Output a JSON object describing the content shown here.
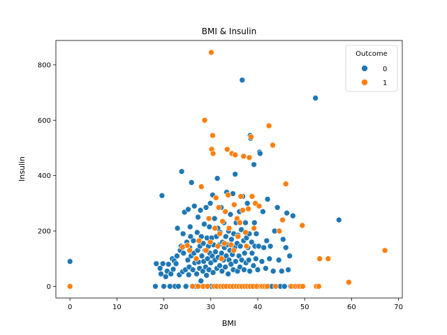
{
  "colors": {
    "outcome0": "#1f77b4",
    "outcome1": "#ff7f0e"
  },
  "chart_data": {
    "type": "scatter",
    "title": "BMI & Insulin",
    "xlabel": "BMI",
    "ylabel": "Insulin",
    "xlim": [
      -3,
      70.8
    ],
    "ylim": [
      -42,
      888
    ],
    "xticks": [
      0,
      10,
      20,
      30,
      40,
      50,
      60,
      70
    ],
    "yticks": [
      0,
      200,
      400,
      600,
      800
    ],
    "grid": false,
    "legend": {
      "title": "Outcome",
      "placement": "top-right",
      "entries": [
        "0",
        "1"
      ]
    },
    "series": [
      {
        "name": "0",
        "color": "#1f77b4",
        "points": [
          [
            0,
            90
          ],
          [
            18.2,
            0
          ],
          [
            18.4,
            82
          ],
          [
            19.2,
            65
          ],
          [
            19.4,
            45
          ],
          [
            19.6,
            328
          ],
          [
            19.8,
            82
          ],
          [
            20.0,
            0
          ],
          [
            20.4,
            35
          ],
          [
            20.7,
            55
          ],
          [
            21.0,
            80
          ],
          [
            21.3,
            0
          ],
          [
            21.5,
            45
          ],
          [
            21.8,
            100
          ],
          [
            22.0,
            62
          ],
          [
            22.2,
            92
          ],
          [
            22.4,
            0
          ],
          [
            22.6,
            82
          ],
          [
            22.8,
            110
          ],
          [
            22.9,
            210
          ],
          [
            23.1,
            0
          ],
          [
            23.3,
            42
          ],
          [
            23.5,
            130
          ],
          [
            23.7,
            145
          ],
          [
            23.8,
            415
          ],
          [
            24.0,
            53
          ],
          [
            24.1,
            190
          ],
          [
            24.2,
            120
          ],
          [
            24.4,
            268
          ],
          [
            24.6,
            60
          ],
          [
            24.7,
            0
          ],
          [
            24.9,
            160
          ],
          [
            25.1,
            95
          ],
          [
            25.2,
            278
          ],
          [
            25.3,
            42
          ],
          [
            25.4,
            70
          ],
          [
            25.5,
            140
          ],
          [
            25.6,
            215
          ],
          [
            25.7,
            180
          ],
          [
            25.8,
            110
          ],
          [
            25.9,
            375
          ],
          [
            26.0,
            0
          ],
          [
            26.2,
            60
          ],
          [
            26.3,
            165
          ],
          [
            26.4,
            120
          ],
          [
            26.5,
            290
          ],
          [
            26.6,
            85
          ],
          [
            26.8,
            0
          ],
          [
            27.0,
            45
          ],
          [
            27.1,
            195
          ],
          [
            27.2,
            130
          ],
          [
            27.3,
            250
          ],
          [
            27.4,
            88
          ],
          [
            27.5,
            0
          ],
          [
            27.6,
            65
          ],
          [
            27.7,
            145
          ],
          [
            27.8,
            275
          ],
          [
            27.9,
            20
          ],
          [
            28.0,
            180
          ],
          [
            28.1,
            110
          ],
          [
            28.2,
            0
          ],
          [
            28.3,
            55
          ],
          [
            28.4,
            155
          ],
          [
            28.5,
            90
          ],
          [
            28.6,
            225
          ],
          [
            28.7,
            0
          ],
          [
            28.8,
            130
          ],
          [
            28.9,
            70
          ],
          [
            29.0,
            285
          ],
          [
            29.1,
            40
          ],
          [
            29.2,
            175
          ],
          [
            29.3,
            100
          ],
          [
            29.4,
            0
          ],
          [
            29.5,
            145
          ],
          [
            29.6,
            60
          ],
          [
            29.7,
            215
          ],
          [
            29.8,
            120
          ],
          [
            29.9,
            300
          ],
          [
            30.0,
            85
          ],
          [
            30.1,
            0
          ],
          [
            30.2,
            175
          ],
          [
            30.3,
            110
          ],
          [
            30.4,
            330
          ],
          [
            30.5,
            50
          ],
          [
            30.6,
            150
          ],
          [
            30.7,
            0
          ],
          [
            30.8,
            245
          ],
          [
            30.9,
            95
          ],
          [
            31.0,
            125
          ],
          [
            31.1,
            0
          ],
          [
            31.2,
            180
          ],
          [
            31.3,
            65
          ],
          [
            31.4,
            390
          ],
          [
            31.5,
            210
          ],
          [
            31.6,
            105
          ],
          [
            31.7,
            0
          ],
          [
            31.8,
            150
          ],
          [
            31.9,
            75
          ],
          [
            32.0,
            195
          ],
          [
            32.1,
            0
          ],
          [
            32.2,
            285
          ],
          [
            32.3,
            120
          ],
          [
            32.4,
            55
          ],
          [
            32.5,
            160
          ],
          [
            32.6,
            0
          ],
          [
            32.7,
            95
          ],
          [
            32.8,
            230
          ],
          [
            32.9,
            140
          ],
          [
            33.0,
            0
          ],
          [
            33.1,
            70
          ],
          [
            33.2,
            180
          ],
          [
            33.3,
            110
          ],
          [
            33.4,
            340
          ],
          [
            33.5,
            0
          ],
          [
            33.6,
            150
          ],
          [
            33.7,
            45
          ],
          [
            33.8,
            200
          ],
          [
            33.9,
            95
          ],
          [
            34.0,
            0
          ],
          [
            34.1,
            130
          ],
          [
            34.2,
            260
          ],
          [
            34.3,
            80
          ],
          [
            34.4,
            170
          ],
          [
            34.5,
            0
          ],
          [
            34.6,
            115
          ],
          [
            34.7,
            335
          ],
          [
            34.8,
            60
          ],
          [
            34.9,
            190
          ],
          [
            35.0,
            0
          ],
          [
            35.1,
            140
          ],
          [
            35.2,
            405
          ],
          [
            35.3,
            90
          ],
          [
            35.4,
            230
          ],
          [
            35.5,
            0
          ],
          [
            35.6,
            155
          ],
          [
            35.7,
            55
          ],
          [
            35.8,
            185
          ],
          [
            35.9,
            0
          ],
          [
            36.0,
            110
          ],
          [
            36.1,
            270
          ],
          [
            36.2,
            70
          ],
          [
            36.3,
            145
          ],
          [
            36.4,
            0
          ],
          [
            36.5,
            205
          ],
          [
            36.6,
            95
          ],
          [
            36.7,
            745
          ],
          [
            36.8,
            325
          ],
          [
            36.9,
            0
          ],
          [
            37.0,
            165
          ],
          [
            37.1,
            60
          ],
          [
            37.2,
            120
          ],
          [
            37.3,
            0
          ],
          [
            37.4,
            230
          ],
          [
            37.5,
            85
          ],
          [
            37.6,
            175
          ],
          [
            37.7,
            0
          ],
          [
            37.8,
            300
          ],
          [
            37.9,
            140
          ],
          [
            38.0,
            0
          ],
          [
            38.1,
            95
          ],
          [
            38.2,
            190
          ],
          [
            38.3,
            55
          ],
          [
            38.4,
            545
          ],
          [
            38.5,
            535
          ],
          [
            38.6,
            0
          ],
          [
            38.7,
            160
          ],
          [
            38.8,
            120
          ],
          [
            38.9,
            325
          ],
          [
            39.0,
            0
          ],
          [
            39.1,
            75
          ],
          [
            39.2,
            440
          ],
          [
            39.3,
            230
          ],
          [
            39.4,
            145
          ],
          [
            39.5,
            0
          ],
          [
            39.6,
            100
          ],
          [
            39.7,
            190
          ],
          [
            39.8,
            0
          ],
          [
            40.0,
            60
          ],
          [
            40.2,
            145
          ],
          [
            40.4,
            485
          ],
          [
            40.5,
            480
          ],
          [
            40.7,
            0
          ],
          [
            40.9,
            90
          ],
          [
            41.1,
            270
          ],
          [
            41.3,
            140
          ],
          [
            41.5,
            0
          ],
          [
            41.7,
            65
          ],
          [
            41.9,
            165
          ],
          [
            42.1,
            315
          ],
          [
            42.3,
            0
          ],
          [
            42.5,
            100
          ],
          [
            42.7,
            145
          ],
          [
            43.0,
            0
          ],
          [
            43.3,
            55
          ],
          [
            43.6,
            200
          ],
          [
            43.9,
            0
          ],
          [
            44.2,
            285
          ],
          [
            44.5,
            95
          ],
          [
            44.8,
            0
          ],
          [
            45.1,
            55
          ],
          [
            45.4,
            170
          ],
          [
            45.7,
            0
          ],
          [
            46.0,
            140
          ],
          [
            46.2,
            265
          ],
          [
            46.5,
            60
          ],
          [
            46.8,
            110
          ],
          [
            47.0,
            0
          ],
          [
            47.5,
            255
          ],
          [
            52.3,
            680
          ],
          [
            57.3,
            240
          ]
        ]
      },
      {
        "name": "1",
        "color": "#ff7f0e",
        "points": [
          [
            0,
            0
          ],
          [
            24.0,
            142
          ],
          [
            25.0,
            148
          ],
          [
            25.5,
            130
          ],
          [
            26.1,
            0
          ],
          [
            26.9,
            100
          ],
          [
            27.3,
            0
          ],
          [
            27.5,
            165
          ],
          [
            28.0,
            360
          ],
          [
            28.4,
            0
          ],
          [
            28.7,
            600
          ],
          [
            29.0,
            130
          ],
          [
            29.3,
            0
          ],
          [
            29.6,
            245
          ],
          [
            29.9,
            160
          ],
          [
            30.1,
            845
          ],
          [
            30.2,
            495
          ],
          [
            30.4,
            545
          ],
          [
            30.5,
            480
          ],
          [
            30.7,
            0
          ],
          [
            30.9,
            210
          ],
          [
            31.1,
            320
          ],
          [
            31.3,
            0
          ],
          [
            31.5,
            145
          ],
          [
            31.7,
            285
          ],
          [
            31.9,
            190
          ],
          [
            32.1,
            0
          ],
          [
            32.3,
            100
          ],
          [
            32.5,
            235
          ],
          [
            32.7,
            0
          ],
          [
            32.9,
            155
          ],
          [
            33.1,
            270
          ],
          [
            33.3,
            0
          ],
          [
            33.5,
            495
          ],
          [
            33.7,
            330
          ],
          [
            33.9,
            210
          ],
          [
            34.1,
            0
          ],
          [
            34.3,
            150
          ],
          [
            34.5,
            480
          ],
          [
            34.7,
            0
          ],
          [
            34.9,
            130
          ],
          [
            35.0,
            295
          ],
          [
            35.2,
            475
          ],
          [
            35.4,
            0
          ],
          [
            35.6,
            245
          ],
          [
            35.8,
            180
          ],
          [
            36.0,
            0
          ],
          [
            36.2,
            230
          ],
          [
            36.4,
            325
          ],
          [
            36.6,
            0
          ],
          [
            36.8,
            275
          ],
          [
            37.0,
            470
          ],
          [
            37.2,
            0
          ],
          [
            37.4,
            195
          ],
          [
            37.6,
            145
          ],
          [
            37.8,
            0
          ],
          [
            38.0,
            280
          ],
          [
            38.2,
            465
          ],
          [
            38.4,
            0
          ],
          [
            38.6,
            540
          ],
          [
            38.8,
            325
          ],
          [
            39.0,
            0
          ],
          [
            39.2,
            210
          ],
          [
            39.5,
            300
          ],
          [
            39.8,
            0
          ],
          [
            40.3,
            290
          ],
          [
            40.6,
            0
          ],
          [
            41.0,
            0
          ],
          [
            41.5,
            0
          ],
          [
            42.0,
            0
          ],
          [
            42.4,
            580
          ],
          [
            43.2,
            510
          ],
          [
            43.8,
            0
          ],
          [
            44.6,
            200
          ],
          [
            45.3,
            240
          ],
          [
            46.0,
            370
          ],
          [
            47.2,
            0
          ],
          [
            48.0,
            0
          ],
          [
            48.6,
            0
          ],
          [
            49.0,
            0
          ],
          [
            49.6,
            0
          ],
          [
            49.5,
            220
          ],
          [
            52.5,
            0
          ],
          [
            53.0,
            0
          ],
          [
            53.2,
            100
          ],
          [
            55.0,
            100
          ],
          [
            59.4,
            15
          ],
          [
            67.1,
            130
          ]
        ]
      }
    ]
  }
}
